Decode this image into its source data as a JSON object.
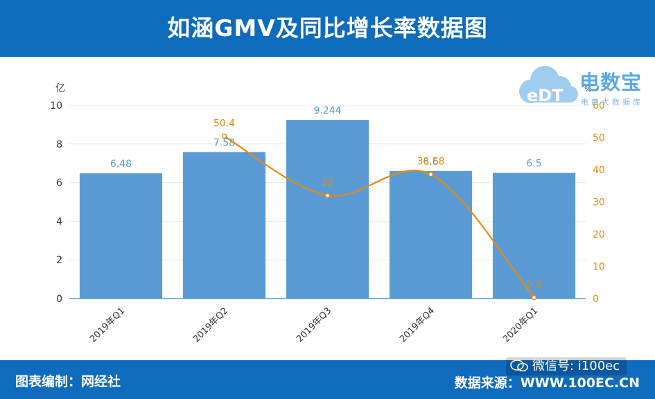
{
  "header": {
    "title": "如涵GMV及同比增长率数据图"
  },
  "footer": {
    "left_text": "图表编制：网经社",
    "right_text": "数据来源：WWW.100EC.CN",
    "wechat_text": "微信号: i100ec"
  },
  "logo": {
    "main_text": "电数宝",
    "sub_text": "电商大数据库",
    "badge_text": "eDT"
  },
  "colors": {
    "band": "#0e6bbd",
    "bar": "#5b9bd5",
    "line": "#e58a0a",
    "axis_left": "#333333"
  },
  "chart_data": {
    "type": "bar",
    "categories": [
      "2019年Q1",
      "2019年Q2",
      "2019年Q3",
      "2019年Q4",
      "2020年Q1"
    ],
    "series": [
      {
        "values": [
          6.48,
          7.58,
          9.244,
          6.6,
          6.5
        ],
        "value_labels": [
          "6.48",
          "7.58",
          "9.244",
          "6.6",
          "6.5"
        ],
        "axis": "left",
        "type": "bar"
      },
      {
        "values": [
          null,
          50.4,
          32,
          38.58,
          0.3
        ],
        "value_labels": [
          "",
          "50.4",
          "32",
          "38.58",
          "0.3"
        ],
        "axis": "right",
        "type": "line"
      }
    ],
    "ylabel": "亿",
    "y2label": "%",
    "ylim": [
      0,
      10
    ],
    "y2lim": [
      0,
      60
    ],
    "yticks": [
      0,
      2,
      4,
      6,
      8,
      10
    ],
    "y2ticks": [
      0,
      10,
      20,
      30,
      40,
      50,
      60
    ],
    "legend": "none",
    "grid": true
  }
}
